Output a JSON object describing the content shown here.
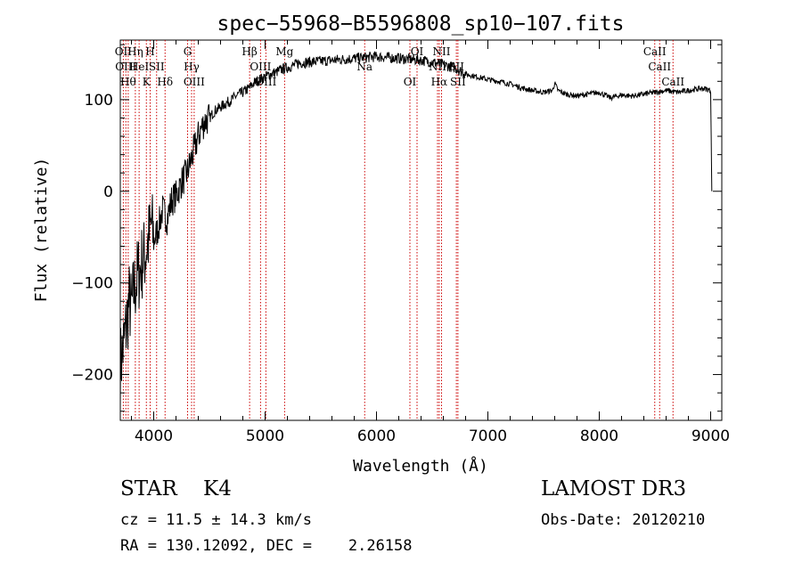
{
  "chart_data": {
    "type": "line",
    "title": "spec−55968−B5596808_sp10−107.fits",
    "xlabel": "Wavelength (Å)",
    "ylabel": "Flux (relative)",
    "xlim": [
      3700,
      9100
    ],
    "ylim": [
      -250,
      165
    ],
    "xticks": [
      4000,
      5000,
      6000,
      7000,
      8000,
      9000
    ],
    "xtick_labels": [
      "4000",
      "5000",
      "6000",
      "7000",
      "8000",
      "9000"
    ],
    "yticks": [
      -200,
      -100,
      0,
      100
    ],
    "ytick_labels": [
      "−200",
      "−100",
      "0",
      "100"
    ],
    "series": [
      {
        "name": "flux",
        "x": [
          3700,
          3740,
          3760,
          3780,
          3800,
          3820,
          3840,
          3860,
          3880,
          3900,
          3920,
          3940,
          3960,
          3980,
          4000,
          4040,
          4080,
          4120,
          4160,
          4200,
          4250,
          4300,
          4350,
          4400,
          4450,
          4500,
          4550,
          4600,
          4650,
          4700,
          4750,
          4800,
          4850,
          4900,
          4950,
          5000,
          5050,
          5100,
          5150,
          5200,
          5250,
          5300,
          5400,
          5500,
          5600,
          5700,
          5800,
          5900,
          6000,
          6100,
          6200,
          6300,
          6400,
          6500,
          6600,
          6700,
          6800,
          6900,
          7000,
          7100,
          7200,
          7300,
          7400,
          7500,
          7580,
          7600,
          7630,
          7700,
          7800,
          7900,
          8000,
          8100,
          8200,
          8300,
          8400,
          8500,
          8600,
          8700,
          8800,
          8900,
          8950,
          9000,
          9005,
          9010
        ],
        "y": [
          -190,
          -160,
          -140,
          -120,
          -130,
          -110,
          -100,
          -90,
          -85,
          -75,
          -70,
          -60,
          -50,
          -35,
          -55,
          -40,
          -20,
          -30,
          -10,
          -5,
          10,
          20,
          40,
          60,
          75,
          80,
          88,
          92,
          96,
          100,
          105,
          108,
          112,
          118,
          122,
          125,
          128,
          130,
          133,
          135,
          137,
          140,
          141,
          142,
          143,
          144,
          145,
          146,
          147,
          146,
          145,
          144,
          143,
          141,
          138,
          135,
          128,
          125,
          122,
          120,
          117,
          113,
          110,
          108,
          110,
          118,
          110,
          106,
          104,
          106,
          108,
          102,
          105,
          104,
          106,
          108,
          110,
          108,
          110,
          112,
          112,
          110,
          60,
          0
        ]
      }
    ],
    "lines": [
      {
        "wl": 3727,
        "label": "OII"
      },
      {
        "wl": 3750,
        "label": "OIII"
      },
      {
        "wl": 3771,
        "label": "Hθ"
      },
      {
        "wl": 3835,
        "label": "Hη"
      },
      {
        "wl": 3869,
        "label": "HeI"
      },
      {
        "wl": 3934,
        "label": "K"
      },
      {
        "wl": 3968,
        "label": "H"
      },
      {
        "wl": 4026,
        "label": "SII"
      },
      {
        "wl": 4102,
        "label": "Hδ"
      },
      {
        "wl": 4304,
        "label": "G"
      },
      {
        "wl": 4340,
        "label": "Hγ"
      },
      {
        "wl": 4363,
        "label": "OIII"
      },
      {
        "wl": 4861,
        "label": "Hβ"
      },
      {
        "wl": 4959,
        "label": "OIII"
      },
      {
        "wl": 5007,
        "label": "OIII"
      },
      {
        "wl": 5175,
        "label": "Mg"
      },
      {
        "wl": 5894,
        "label": "Na"
      },
      {
        "wl": 6300,
        "label": "OI"
      },
      {
        "wl": 6364,
        "label": "OI"
      },
      {
        "wl": 6548,
        "label": "NII"
      },
      {
        "wl": 6563,
        "label": "Hα"
      },
      {
        "wl": 6584,
        "label": "NII"
      },
      {
        "wl": 6717,
        "label": "SII"
      },
      {
        "wl": 6731,
        "label": "SII"
      },
      {
        "wl": 8498,
        "label": "CaII"
      },
      {
        "wl": 8542,
        "label": "CaII"
      },
      {
        "wl": 8662,
        "label": "CaII"
      }
    ]
  },
  "info": {
    "class_line": "STAR    K4",
    "survey": "LAMOST DR3",
    "cz_line": "cz = 11.5 ± 14.3 km/s",
    "obs_date": "Obs-Date: 20120210",
    "radec_line": "RA = 130.12092, DEC =    2.26158"
  }
}
